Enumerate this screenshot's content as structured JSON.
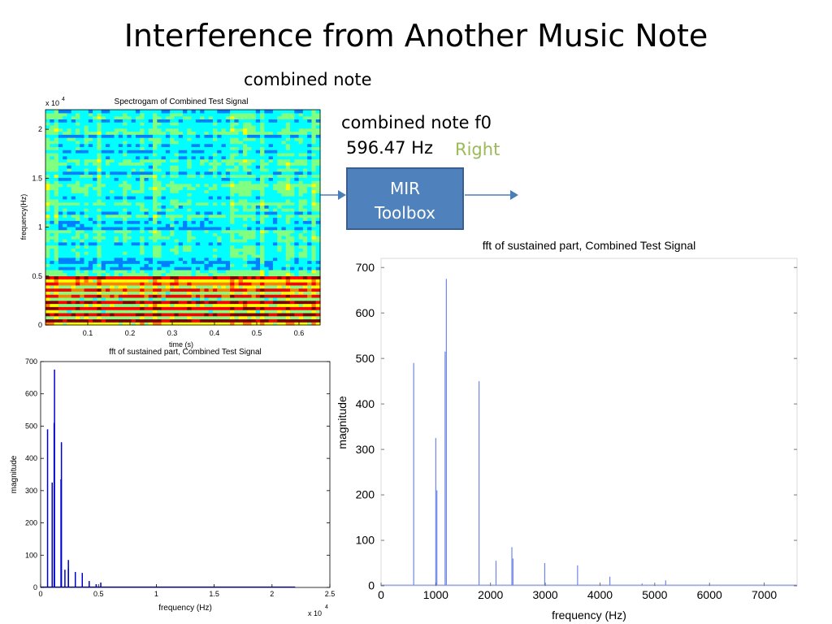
{
  "slide": {
    "title": "Interference from Another Music Note",
    "combined_label": "combined note",
    "f0_label": "combined note f0",
    "f0_value": "596.47 Hz",
    "verdict": "Right",
    "verdict_color": "#9bbb59",
    "box_line1": "MIR",
    "box_line2": "Toolbox",
    "box_color": "#4f81bd",
    "arrow_color": "#4a7ebb"
  },
  "chart_data": [
    {
      "type": "heatmap",
      "title": "Spectrogam of Combined Test Signal",
      "xlabel": "time (s)",
      "ylabel": "frequency(Hz)",
      "y_exponent_label": "x 10",
      "y_exponent_power": "4",
      "xlim": [
        0,
        0.65
      ],
      "ylim": [
        0,
        2.2
      ],
      "x_ticks": [
        0.1,
        0.2,
        0.3,
        0.4,
        0.5,
        0.6
      ],
      "y_ticks": [
        0,
        0.5,
        1,
        1.5,
        2
      ],
      "x_tick_labels": [
        "0.1",
        "0.2",
        "0.3",
        "0.4",
        "0.5",
        "0.6"
      ],
      "y_tick_labels": [
        "0",
        "0.5",
        "1",
        "1.5",
        "2"
      ],
      "strong_bands_y": [
        0.06,
        0.12,
        0.18,
        0.24,
        0.3,
        0.36,
        0.42,
        0.48
      ],
      "colormap": [
        "#00008f",
        "#0000ff",
        "#0080ff",
        "#00ffff",
        "#80ff80",
        "#ffff00",
        "#ff8000",
        "#ff0000",
        "#800000"
      ]
    },
    {
      "type": "line",
      "title": "fft of sustained part, Combined Test Signal",
      "xlabel": "frequency (Hz)",
      "ylabel": "magnitude",
      "x_exponent_label": "x 10",
      "x_exponent_power": "4",
      "xlim": [
        0,
        2.5
      ],
      "ylim": [
        0,
        700
      ],
      "x_ticks": [
        0,
        0.5,
        1,
        1.5,
        2,
        2.5
      ],
      "y_ticks": [
        0,
        100,
        200,
        300,
        400,
        500,
        600,
        700
      ],
      "x_tick_labels": [
        "0",
        "0.5",
        "1",
        "1.5",
        "2",
        "2.5"
      ],
      "y_tick_labels": [
        "0",
        "100",
        "200",
        "300",
        "400",
        "500",
        "600",
        "700"
      ],
      "color": "#0000cc",
      "peaks": [
        {
          "x": 0.06,
          "y": 490
        },
        {
          "x": 0.1,
          "y": 325
        },
        {
          "x": 0.117,
          "y": 510
        },
        {
          "x": 0.12,
          "y": 675
        },
        {
          "x": 0.18,
          "y": 450
        },
        {
          "x": 0.176,
          "y": 335
        },
        {
          "x": 0.21,
          "y": 55
        },
        {
          "x": 0.24,
          "y": 85
        },
        {
          "x": 0.24,
          "y": 60
        },
        {
          "x": 0.3,
          "y": 48
        },
        {
          "x": 0.36,
          "y": 45
        },
        {
          "x": 0.42,
          "y": 20
        },
        {
          "x": 0.48,
          "y": 10
        },
        {
          "x": 0.52,
          "y": 15
        }
      ]
    },
    {
      "type": "line",
      "title": "fft of sustained part, Combined Test Signal",
      "xlabel": "frequency (Hz)",
      "ylabel": "magnitude",
      "xlim": [
        0,
        7600
      ],
      "ylim": [
        0,
        720
      ],
      "x_ticks": [
        0,
        1000,
        2000,
        3000,
        4000,
        5000,
        6000,
        7000
      ],
      "y_ticks": [
        0,
        100,
        200,
        300,
        400,
        500,
        600,
        700
      ],
      "x_tick_labels": [
        "0",
        "1000",
        "2000",
        "3000",
        "4000",
        "5000",
        "6000",
        "7000"
      ],
      "y_tick_labels": [
        "0",
        "100",
        "200",
        "300",
        "400",
        "500",
        "600",
        "700"
      ],
      "color": "#6f86e6",
      "peaks": [
        {
          "x": 596,
          "y": 490
        },
        {
          "x": 1000,
          "y": 325
        },
        {
          "x": 1020,
          "y": 210
        },
        {
          "x": 1170,
          "y": 515
        },
        {
          "x": 1193,
          "y": 675
        },
        {
          "x": 1790,
          "y": 450
        },
        {
          "x": 2100,
          "y": 55
        },
        {
          "x": 2390,
          "y": 85
        },
        {
          "x": 2410,
          "y": 60
        },
        {
          "x": 2990,
          "y": 50
        },
        {
          "x": 3590,
          "y": 45
        },
        {
          "x": 4180,
          "y": 20
        },
        {
          "x": 4770,
          "y": 5
        },
        {
          "x": 5200,
          "y": 12
        }
      ]
    }
  ]
}
